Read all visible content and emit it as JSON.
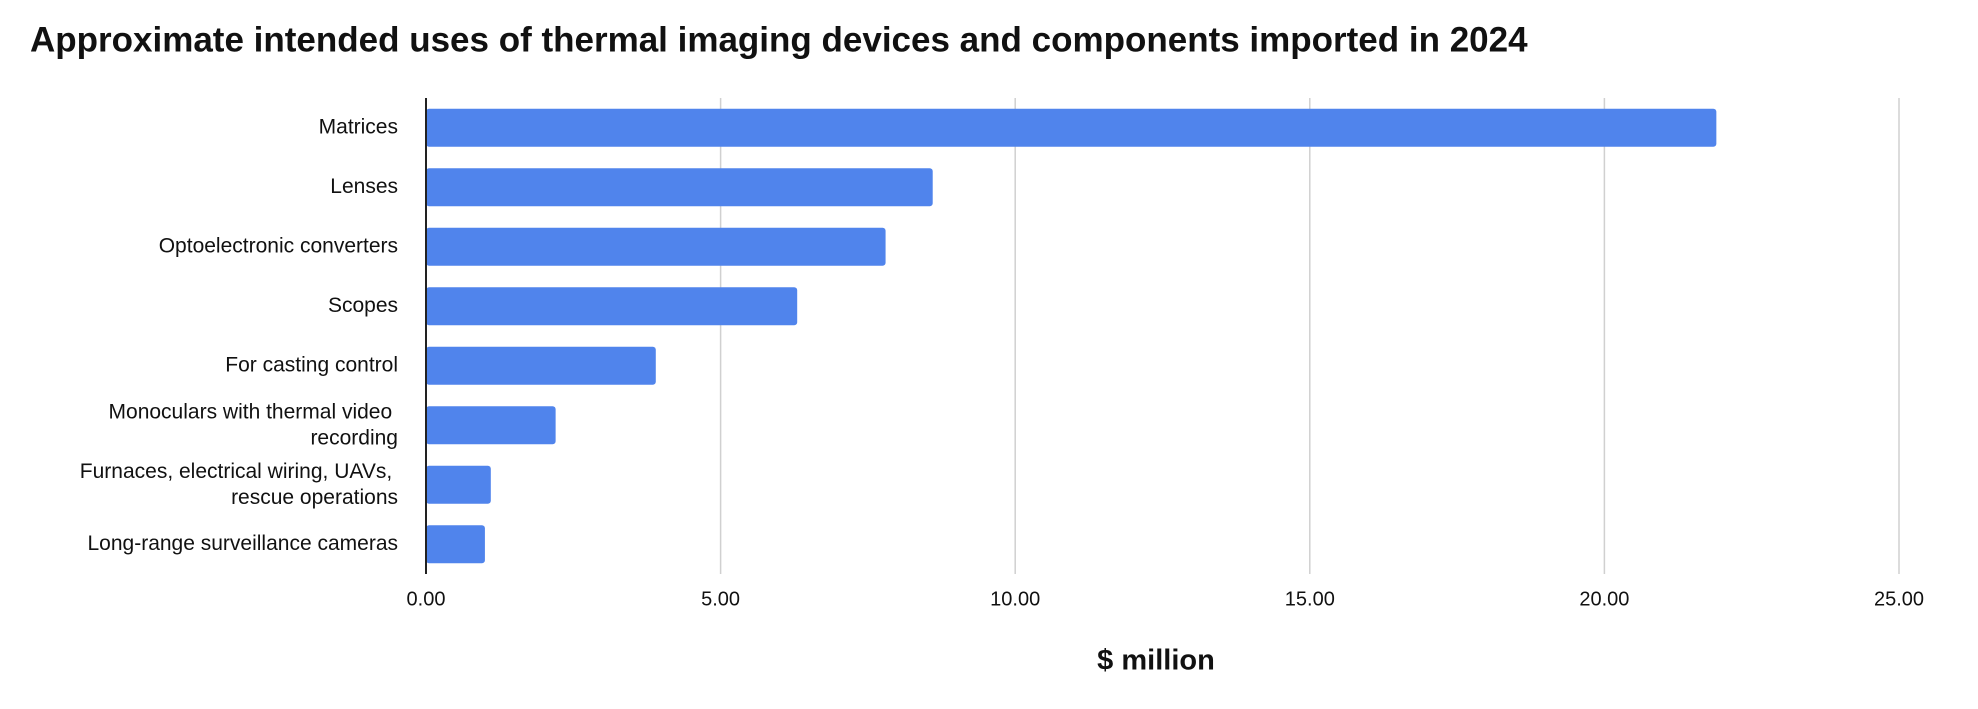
{
  "chart_data": {
    "type": "bar",
    "orientation": "horizontal",
    "title": "Approximate intended uses of thermal imaging devices and components imported in 2024",
    "x_label": "$ million",
    "categories": [
      "Matrices",
      "Lenses",
      "Optoelectronic converters",
      "Scopes",
      "For casting control",
      "Monoculars with thermal video recording",
      "Furnaces, electrical wiring, UAVs, rescue operations",
      "Long-range surveillance cameras"
    ],
    "values": [
      21.9,
      8.6,
      7.8,
      6.3,
      3.9,
      2.2,
      1.1,
      1.0
    ],
    "color": "#5084ec",
    "xlim": [
      0,
      25
    ],
    "xticks": [
      {
        "value": 0,
        "label": "0.00"
      },
      {
        "value": 5,
        "label": "5.00"
      },
      {
        "value": 10,
        "label": "10.00"
      },
      {
        "value": 15,
        "label": "15.00"
      },
      {
        "value": 20,
        "label": "20.00"
      },
      {
        "value": 25,
        "label": "25.00"
      }
    ],
    "grid": true
  }
}
